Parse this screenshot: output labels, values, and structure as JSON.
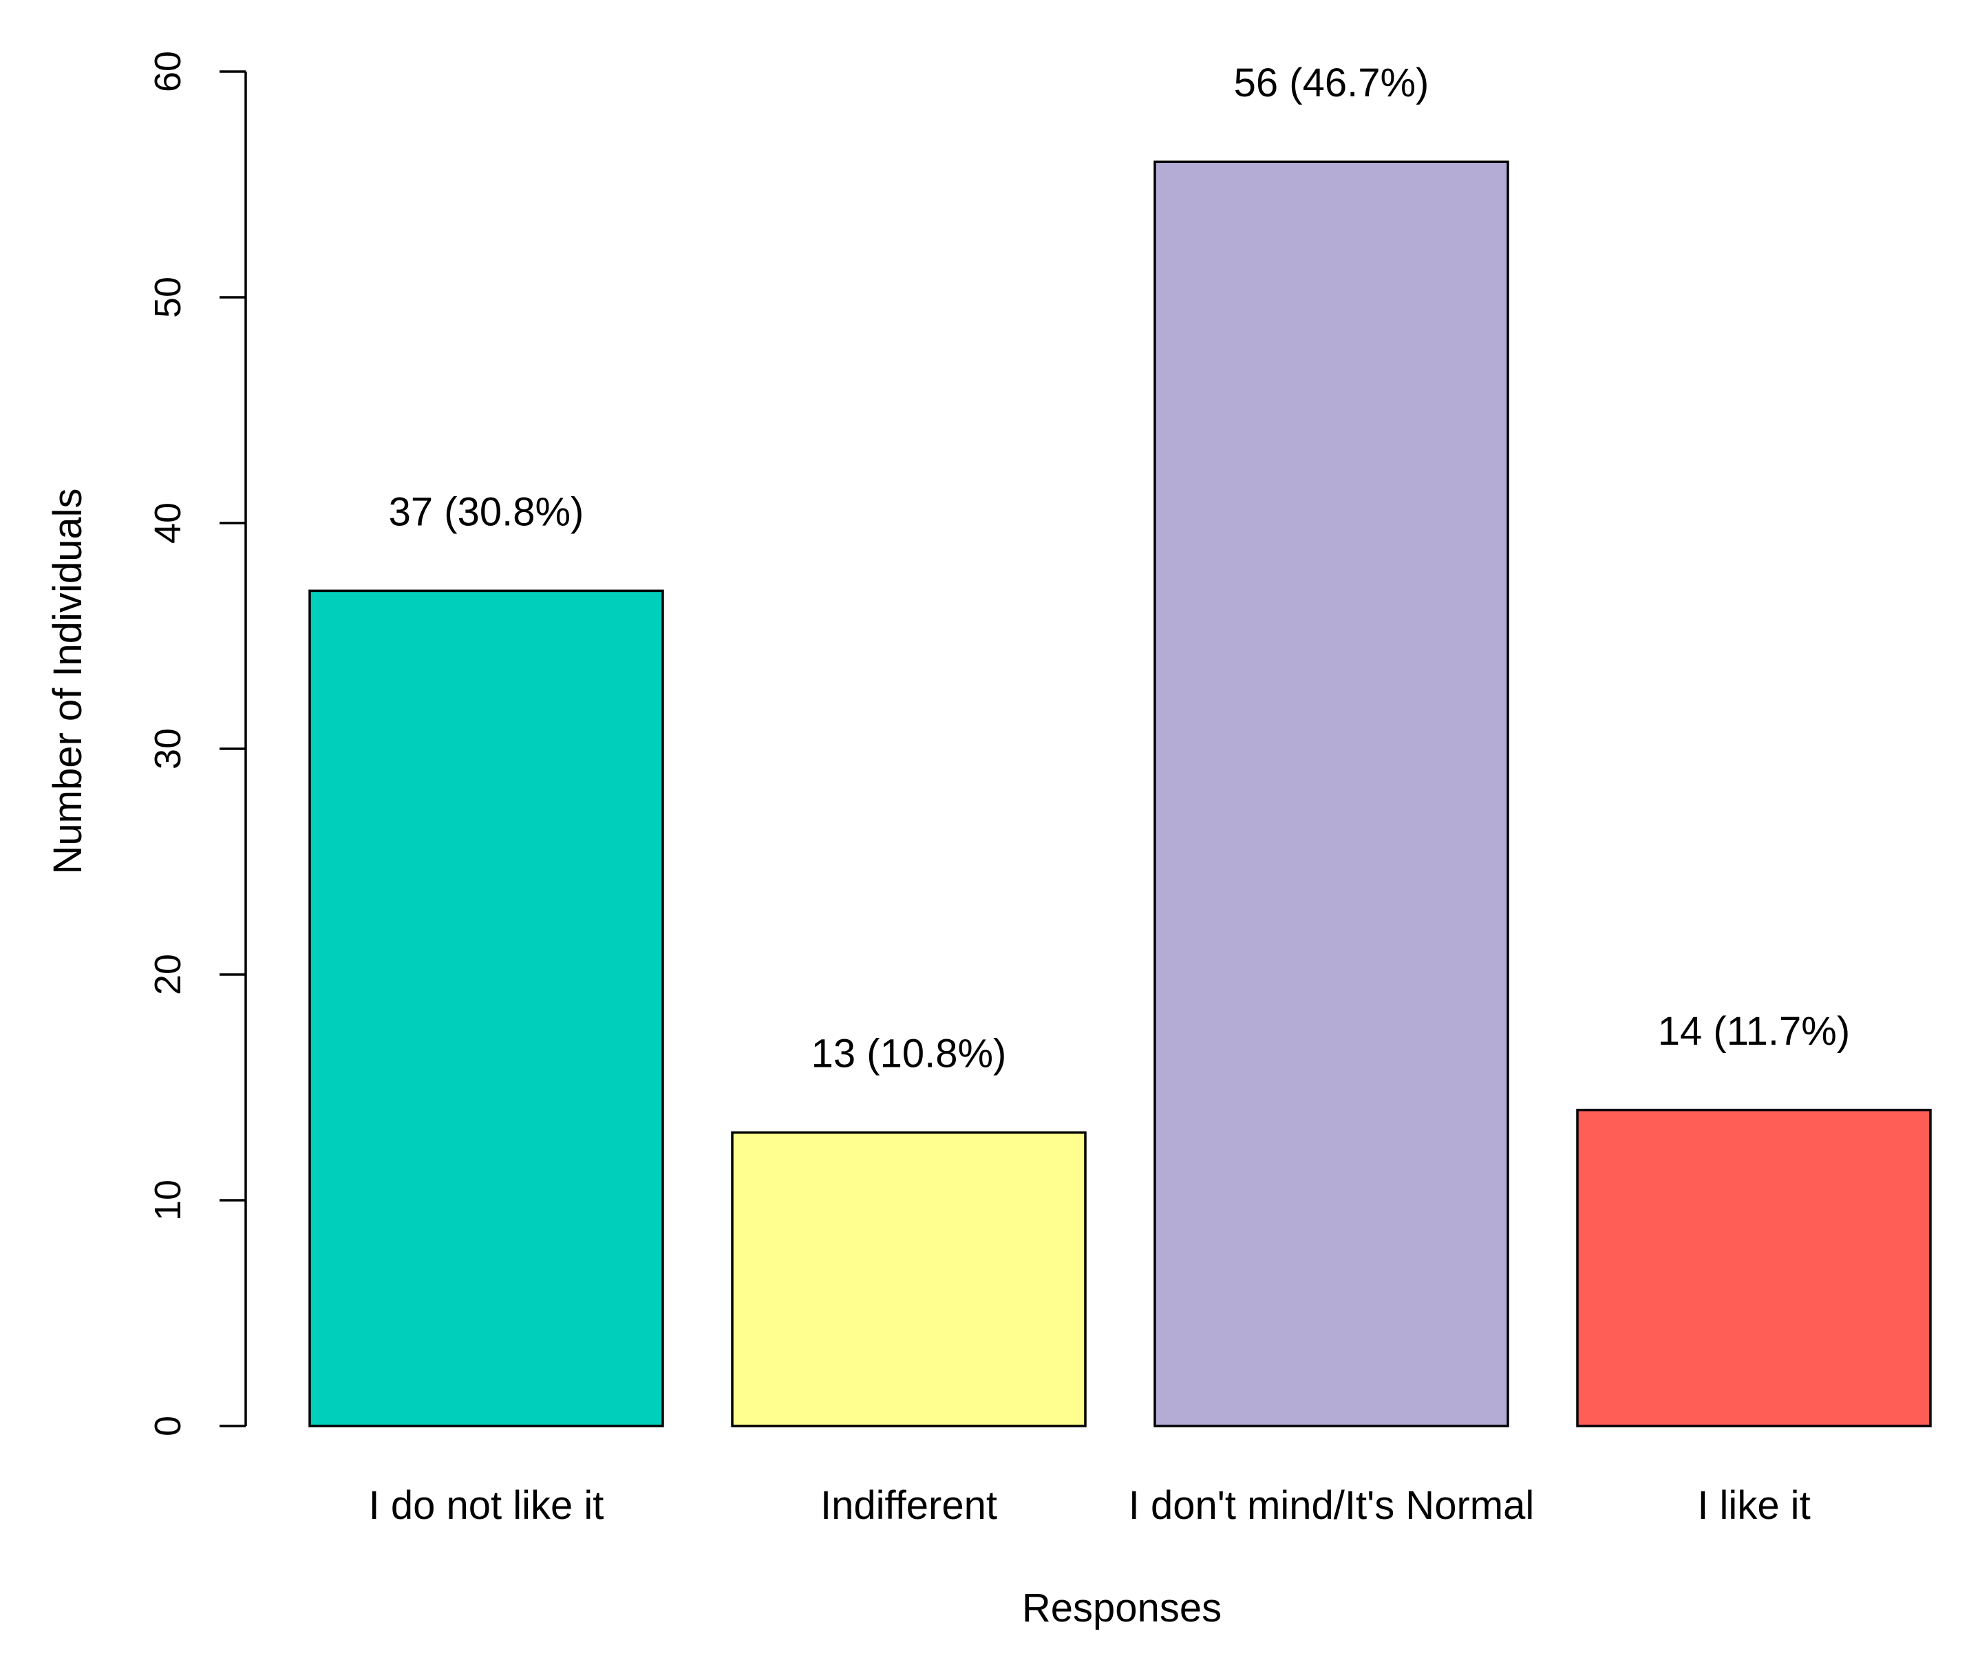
{
  "chart_data": {
    "type": "bar",
    "categories": [
      "I do not like it",
      "Indifferent",
      "I don't mind/It's Normal",
      "I like it"
    ],
    "values": [
      37,
      13,
      56,
      14
    ],
    "data_labels": [
      "37 (30.8%)",
      "13 (10.8%)",
      "56 (46.7%)",
      "14 (11.7%)"
    ],
    "colors": [
      "#00CFBC",
      "#FFFF8F",
      "#B5ACD6",
      "#FF5E57"
    ],
    "title": "",
    "xlabel": "Responses",
    "ylabel": "Number of Individuals",
    "ylim": [
      0,
      60
    ],
    "yticks": [
      0,
      10,
      20,
      30,
      40,
      50,
      60
    ],
    "grid": false,
    "legend": "none"
  }
}
